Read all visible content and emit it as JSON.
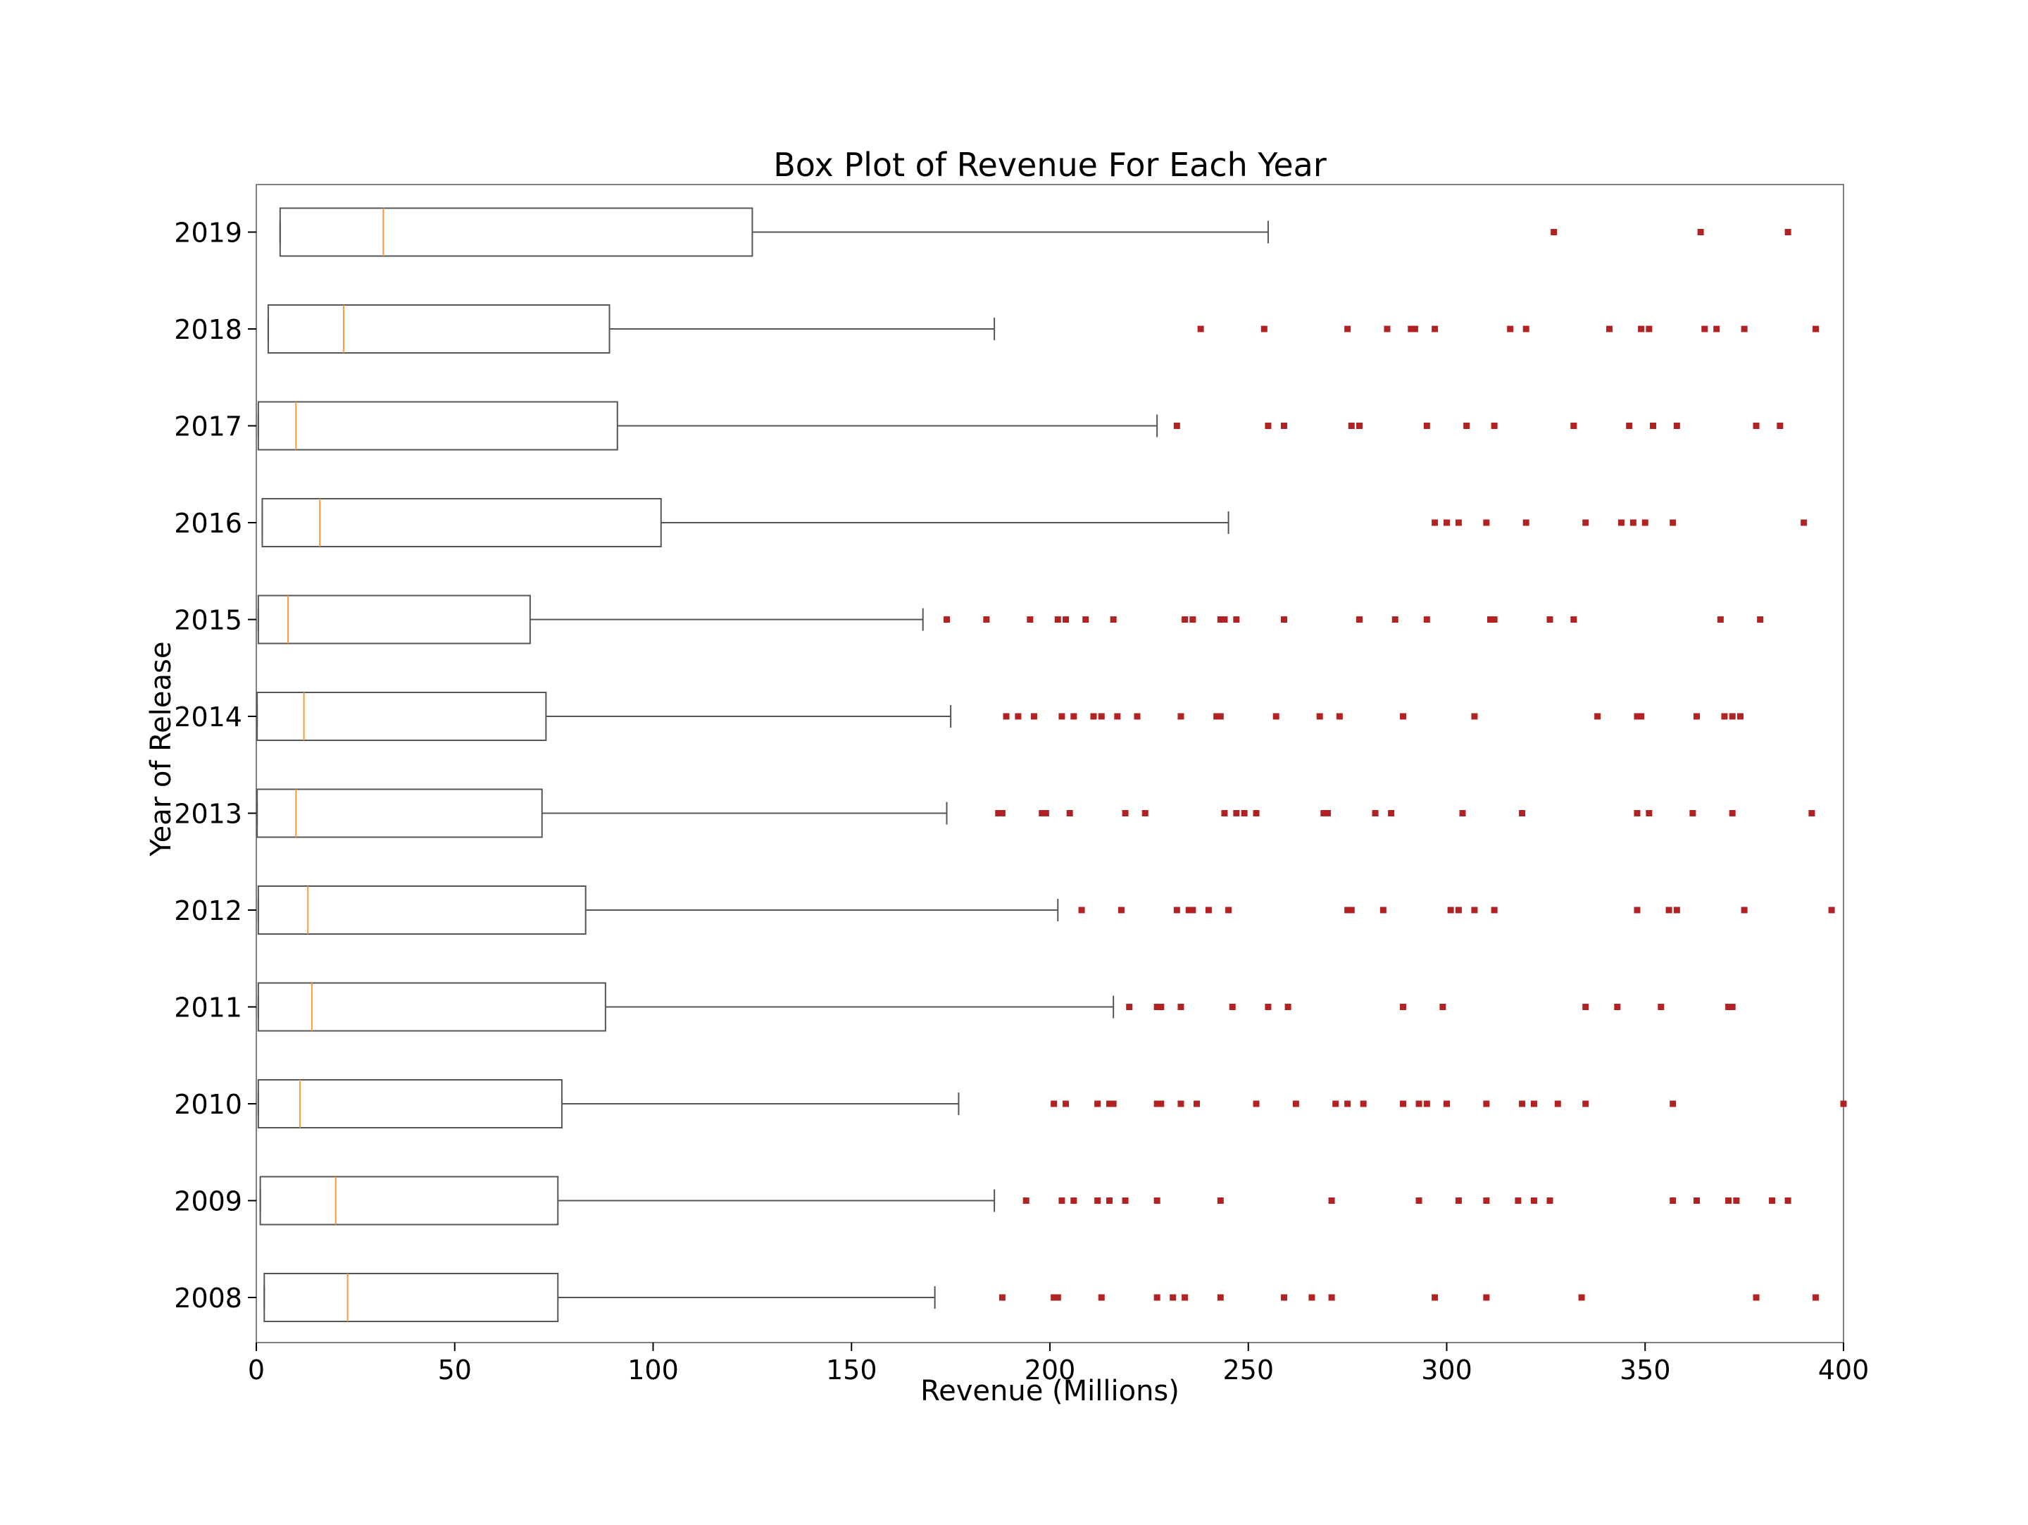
{
  "chart_data": {
    "type": "boxplot",
    "orientation": "horizontal",
    "title": "Box Plot of Revenue For Each Year",
    "xlabel": "Revenue (Millions)",
    "ylabel": "Year of Release",
    "xlim": [
      0,
      400
    ],
    "xticks": [
      "0",
      "50",
      "100",
      "150",
      "200",
      "250",
      "300",
      "350",
      "400"
    ],
    "grid": false,
    "colors": {
      "box": "#555555",
      "median": "#ff9a3c",
      "whisker": "#555555",
      "outlier": "#b22222",
      "frame": "#808080"
    },
    "categories": [
      "2008",
      "2009",
      "2010",
      "2011",
      "2012",
      "2013",
      "2014",
      "2015",
      "2016",
      "2017",
      "2018",
      "2019"
    ],
    "series": [
      {
        "category": "2008",
        "whisker_low": 2,
        "q1": 2,
        "median": 23,
        "q3": 76,
        "whisker_high": 171,
        "outliers": [
          188,
          201,
          202,
          213,
          227,
          231,
          234,
          243,
          259,
          266,
          271,
          297,
          310,
          334,
          378,
          393
        ]
      },
      {
        "category": "2009",
        "whisker_low": 1,
        "q1": 1,
        "median": 20,
        "q3": 76,
        "whisker_high": 186,
        "outliers": [
          194,
          203,
          206,
          212,
          215,
          219,
          227,
          243,
          271,
          293,
          303,
          310,
          318,
          322,
          326,
          357,
          363,
          371,
          373,
          382,
          386
        ]
      },
      {
        "category": "2010",
        "whisker_low": 0.5,
        "q1": 0.5,
        "median": 11,
        "q3": 77,
        "whisker_high": 177,
        "outliers": [
          201,
          204,
          212,
          215,
          216,
          227,
          228,
          233,
          237,
          252,
          262,
          272,
          275,
          279,
          289,
          293,
          295,
          300,
          310,
          319,
          322,
          328,
          335,
          357,
          400
        ]
      },
      {
        "category": "2011",
        "whisker_low": 0.5,
        "q1": 0.5,
        "median": 14,
        "q3": 88,
        "whisker_high": 216,
        "outliers": [
          220,
          227,
          228,
          233,
          246,
          255,
          260,
          289,
          299,
          335,
          343,
          354,
          371,
          372
        ]
      },
      {
        "category": "2012",
        "whisker_low": 0.5,
        "q1": 0.5,
        "median": 13,
        "q3": 83,
        "whisker_high": 202,
        "outliers": [
          208,
          218,
          232,
          235,
          236,
          240,
          245,
          275,
          276,
          284,
          301,
          303,
          307,
          312,
          348,
          356,
          358,
          375,
          397
        ]
      },
      {
        "category": "2013",
        "whisker_low": 0.2,
        "q1": 0.2,
        "median": 10,
        "q3": 72,
        "whisker_high": 174,
        "outliers": [
          187,
          188,
          198,
          199,
          205,
          219,
          224,
          244,
          247,
          249,
          252,
          269,
          270,
          282,
          286,
          304,
          319,
          348,
          351,
          362,
          372,
          392
        ]
      },
      {
        "category": "2014",
        "whisker_low": 0.2,
        "q1": 0.2,
        "median": 12,
        "q3": 73,
        "whisker_high": 175,
        "outliers": [
          189,
          192,
          196,
          203,
          206,
          211,
          213,
          217,
          222,
          233,
          242,
          243,
          257,
          268,
          273,
          289,
          307,
          338,
          348,
          349,
          363,
          370,
          372,
          374
        ]
      },
      {
        "category": "2015",
        "whisker_low": 0.5,
        "q1": 0.5,
        "median": 8,
        "q3": 69,
        "whisker_high": 168,
        "outliers": [
          174,
          184,
          195,
          202,
          204,
          209,
          216,
          234,
          236,
          243,
          244,
          247,
          259,
          278,
          287,
          295,
          311,
          312,
          326,
          332,
          369,
          379
        ]
      },
      {
        "category": "2016",
        "whisker_low": 1.5,
        "q1": 1.5,
        "median": 16,
        "q3": 102,
        "whisker_high": 245,
        "outliers": [
          297,
          300,
          303,
          310,
          320,
          335,
          344,
          347,
          350,
          357,
          390
        ]
      },
      {
        "category": "2017",
        "whisker_low": 0.5,
        "q1": 0.5,
        "median": 10,
        "q3": 91,
        "whisker_high": 227,
        "outliers": [
          232,
          255,
          259,
          276,
          278,
          295,
          305,
          312,
          332,
          346,
          352,
          358,
          378,
          384
        ]
      },
      {
        "category": "2018",
        "whisker_low": 3,
        "q1": 3,
        "median": 22,
        "q3": 89,
        "whisker_high": 186,
        "outliers": [
          238,
          254,
          275,
          285,
          291,
          292,
          297,
          316,
          320,
          341,
          349,
          351,
          365,
          368,
          375,
          393
        ]
      },
      {
        "category": "2019",
        "whisker_low": 6,
        "q1": 6,
        "median": 32,
        "q3": 125,
        "whisker_high": 255,
        "outliers": [
          327,
          364,
          386
        ]
      }
    ]
  }
}
